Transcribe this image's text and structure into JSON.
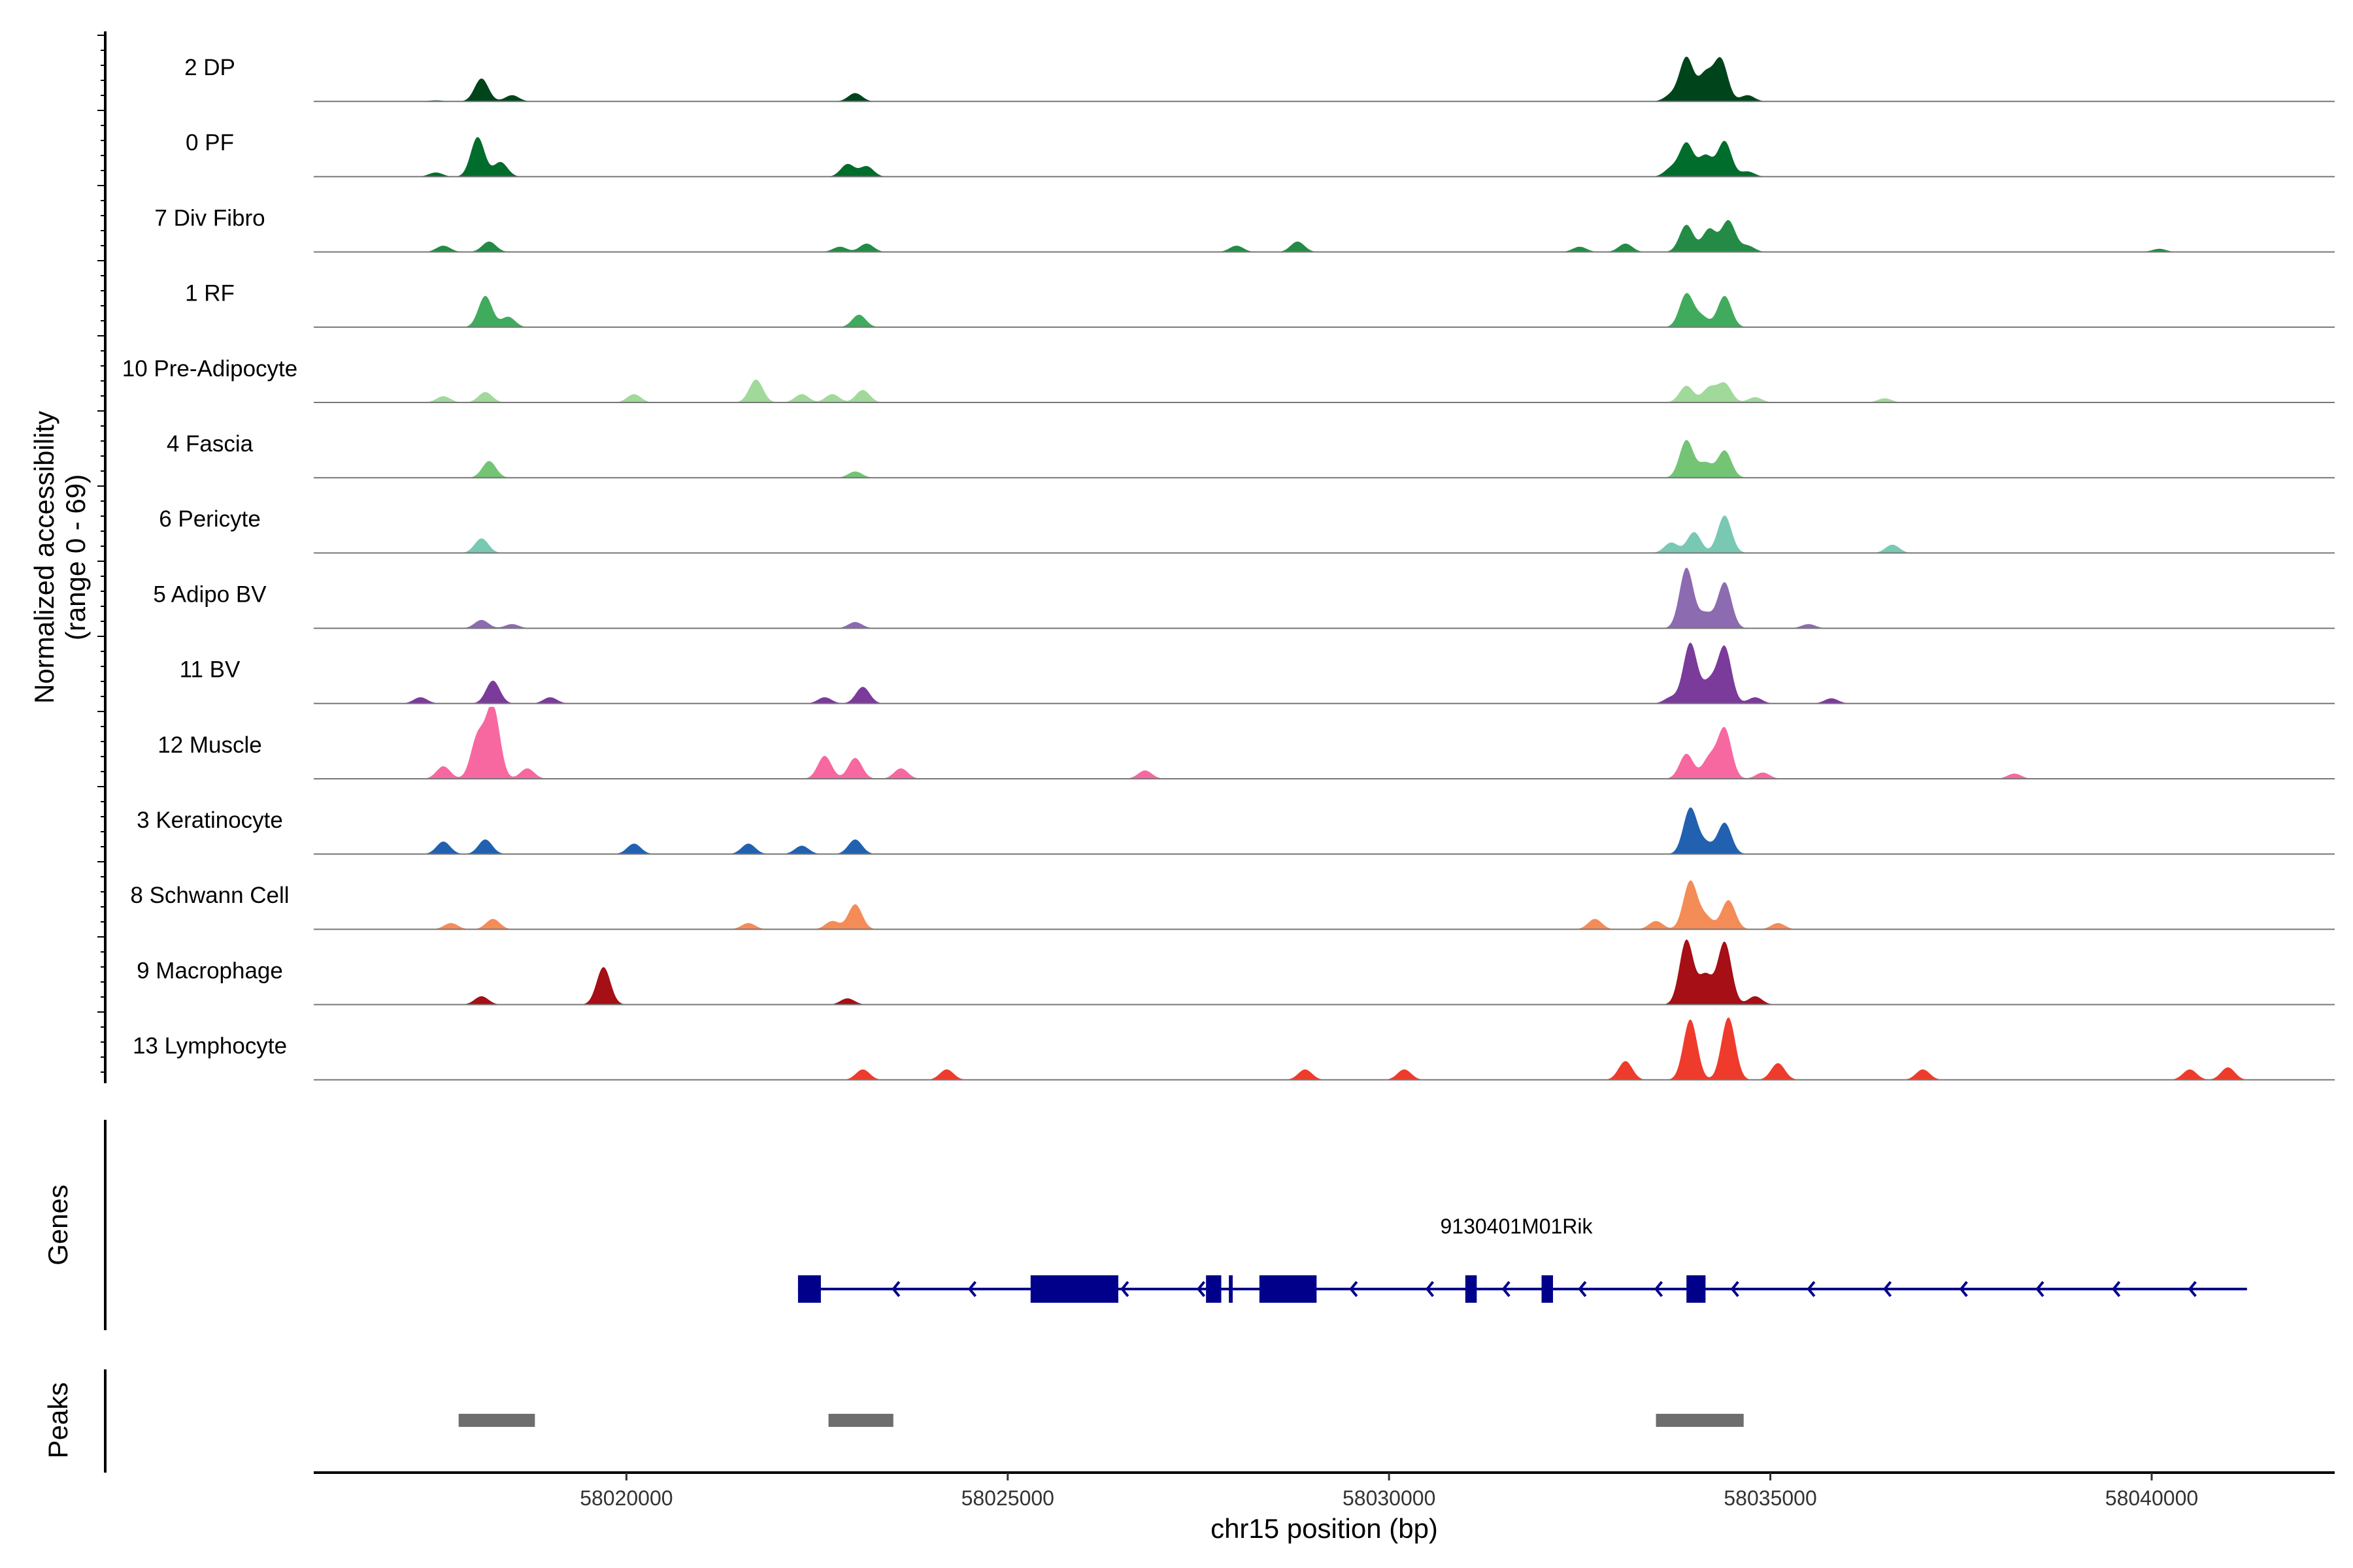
{
  "chart_data": {
    "type": "area",
    "chromosome": "chr15",
    "xlabel": "chr15 position (bp)",
    "ylabel_line1": "Normalized accessibility",
    "ylabel_line2": "(range 0 - 69)",
    "ylim": [
      0,
      69
    ],
    "xlim": [
      58015900,
      58042400
    ],
    "x_ticks": [
      58020000,
      58025000,
      58030000,
      58035000,
      58040000
    ],
    "x_tick_labels": [
      "58020000",
      "58025000",
      "58030000",
      "58035000",
      "58040000"
    ],
    "panel_labels": {
      "genes": "Genes",
      "peaks": "Peaks"
    },
    "series": [
      {
        "name": "2 DP",
        "color": "#00441b",
        "peaks": [
          [
            58017500,
            1
          ],
          [
            58018100,
            22
          ],
          [
            58018500,
            6
          ],
          [
            58023000,
            8
          ],
          [
            58033700,
            6
          ],
          [
            58033900,
            42
          ],
          [
            58034150,
            26
          ],
          [
            58034350,
            40
          ],
          [
            58034700,
            6
          ]
        ]
      },
      {
        "name": "0 PF",
        "color": "#006d2c",
        "peaks": [
          [
            58017500,
            4
          ],
          [
            58018050,
            38
          ],
          [
            58018350,
            14
          ],
          [
            58022900,
            12
          ],
          [
            58023150,
            10
          ],
          [
            58033700,
            8
          ],
          [
            58033900,
            32
          ],
          [
            58034150,
            20
          ],
          [
            58034400,
            34
          ],
          [
            58034700,
            5
          ]
        ]
      },
      {
        "name": "7 Div Fibro",
        "color": "#238b45",
        "peaks": [
          [
            58017600,
            6
          ],
          [
            58018200,
            10
          ],
          [
            58022800,
            5
          ],
          [
            58023150,
            8
          ],
          [
            58028000,
            6
          ],
          [
            58028800,
            10
          ],
          [
            58032500,
            5
          ],
          [
            58033100,
            8
          ],
          [
            58033900,
            26
          ],
          [
            58034200,
            22
          ],
          [
            58034450,
            30
          ],
          [
            58034700,
            6
          ],
          [
            58040100,
            3
          ]
        ]
      },
      {
        "name": "1 RF",
        "color": "#41ab5d",
        "peaks": [
          [
            58018150,
            30
          ],
          [
            58018450,
            10
          ],
          [
            58023050,
            12
          ],
          [
            58033900,
            32
          ],
          [
            58034100,
            10
          ],
          [
            58034400,
            30
          ]
        ]
      },
      {
        "name": "10 Pre-Adipocyte",
        "color": "#a1d99b",
        "peaks": [
          [
            58017600,
            6
          ],
          [
            58018150,
            10
          ],
          [
            58020100,
            8
          ],
          [
            58021700,
            22
          ],
          [
            58022300,
            8
          ],
          [
            58022700,
            8
          ],
          [
            58023100,
            12
          ],
          [
            58033900,
            16
          ],
          [
            58034200,
            14
          ],
          [
            58034400,
            18
          ],
          [
            58034800,
            5
          ],
          [
            58036500,
            4
          ]
        ]
      },
      {
        "name": "4 Fascia",
        "color": "#74c476",
        "peaks": [
          [
            58018200,
            16
          ],
          [
            58023000,
            6
          ],
          [
            58033900,
            36
          ],
          [
            58034150,
            14
          ],
          [
            58034400,
            26
          ]
        ]
      },
      {
        "name": "6 Pericyte",
        "color": "#78c8b4",
        "peaks": [
          [
            58018100,
            14
          ],
          [
            58033700,
            10
          ],
          [
            58034000,
            20
          ],
          [
            58034400,
            36
          ],
          [
            58036600,
            8
          ]
        ]
      },
      {
        "name": "5 Adipo BV",
        "color": "#8c6bb1",
        "peaks": [
          [
            58018100,
            8
          ],
          [
            58018500,
            4
          ],
          [
            58023000,
            6
          ],
          [
            58033900,
            58
          ],
          [
            58034150,
            14
          ],
          [
            58034400,
            44
          ],
          [
            58035500,
            4
          ]
        ]
      },
      {
        "name": "11 BV",
        "color": "#7a3b9a",
        "peaks": [
          [
            58017300,
            6
          ],
          [
            58018250,
            22
          ],
          [
            58019000,
            6
          ],
          [
            58022600,
            6
          ],
          [
            58023100,
            16
          ],
          [
            58033700,
            6
          ],
          [
            58033950,
            58
          ],
          [
            58034200,
            20
          ],
          [
            58034400,
            54
          ],
          [
            58034800,
            6
          ],
          [
            58035800,
            5
          ]
        ]
      },
      {
        "name": "12 Muscle",
        "color": "#f768a1",
        "peaks": [
          [
            58017600,
            12
          ],
          [
            58018050,
            40
          ],
          [
            58018250,
            69
          ],
          [
            58018700,
            10
          ],
          [
            58022600,
            22
          ],
          [
            58023000,
            20
          ],
          [
            58023600,
            10
          ],
          [
            58026800,
            8
          ],
          [
            58033900,
            24
          ],
          [
            58034200,
            20
          ],
          [
            58034400,
            48
          ],
          [
            58034900,
            6
          ],
          [
            58038200,
            5
          ]
        ]
      },
      {
        "name": "3 Keratinocyte",
        "color": "#2161b0",
        "peaks": [
          [
            58017600,
            12
          ],
          [
            58018150,
            14
          ],
          [
            58020100,
            10
          ],
          [
            58021600,
            10
          ],
          [
            58022300,
            8
          ],
          [
            58023000,
            14
          ],
          [
            58033950,
            44
          ],
          [
            58034150,
            10
          ],
          [
            58034400,
            30
          ]
        ]
      },
      {
        "name": "8 Schwann Cell",
        "color": "#f48c58",
        "peaks": [
          [
            58017700,
            6
          ],
          [
            58018250,
            10
          ],
          [
            58021600,
            6
          ],
          [
            58022700,
            8
          ],
          [
            58023000,
            24
          ],
          [
            58032700,
            10
          ],
          [
            58033500,
            8
          ],
          [
            58033950,
            46
          ],
          [
            58034150,
            12
          ],
          [
            58034450,
            28
          ],
          [
            58035100,
            6
          ]
        ]
      },
      {
        "name": "9 Macrophage",
        "color": "#a50f15",
        "peaks": [
          [
            58018100,
            8
          ],
          [
            58019700,
            36
          ],
          [
            58022900,
            6
          ],
          [
            58033900,
            62
          ],
          [
            58034150,
            28
          ],
          [
            58034400,
            60
          ],
          [
            58034800,
            8
          ]
        ]
      },
      {
        "name": "13 Lymphocyte",
        "color": "#ef3b2c",
        "peaks": [
          [
            58023100,
            10
          ],
          [
            58024200,
            10
          ],
          [
            58028900,
            10
          ],
          [
            58030200,
            10
          ],
          [
            58033100,
            18
          ],
          [
            58033950,
            58
          ],
          [
            58034450,
            60
          ],
          [
            58035100,
            16
          ],
          [
            58037000,
            10
          ],
          [
            58040500,
            10
          ],
          [
            58041000,
            12
          ]
        ]
      }
    ],
    "gene": {
      "name": "9130401M01Rik",
      "color": "#00008b",
      "strand": "-",
      "start": 58022250,
      "end": 58041250,
      "exons": [
        [
          58022250,
          58022550
        ],
        [
          58025300,
          58026450
        ],
        [
          58027600,
          58027800
        ],
        [
          58027900,
          58027950
        ],
        [
          58028300,
          58029050
        ],
        [
          58031000,
          58031150
        ],
        [
          58032000,
          58032150
        ],
        [
          58033900,
          58034150
        ]
      ]
    },
    "peak_regions": [
      [
        58017800,
        58018800
      ],
      [
        58022650,
        58023500
      ],
      [
        58033500,
        58034650
      ]
    ],
    "peak_color": "#6e6e6e"
  }
}
